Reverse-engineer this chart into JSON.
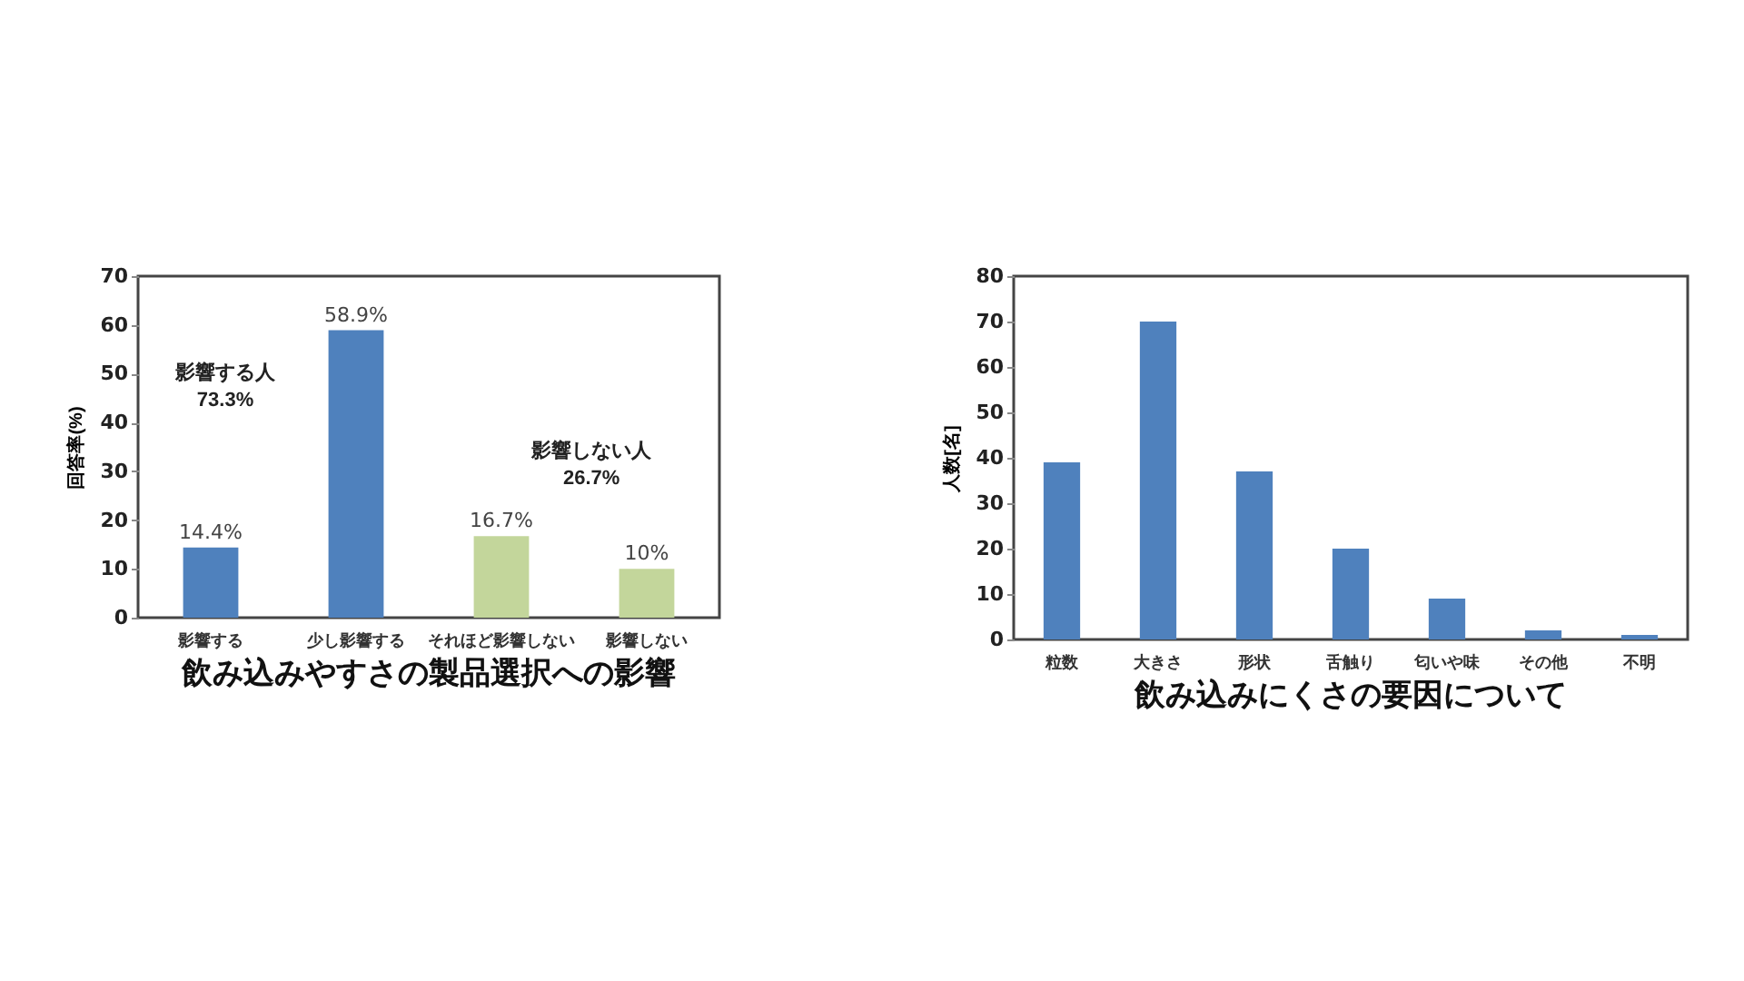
{
  "chart_data": [
    {
      "type": "bar",
      "title": "飲み込みやすさの製品選択への影響",
      "ylabel": "回答率(%)",
      "categories": [
        "影響する",
        "少し影響する",
        "それほど影響しない",
        "影響しない"
      ],
      "values": [
        14.4,
        58.9,
        16.7,
        10
      ],
      "colors": [
        "#4f81bd",
        "#4f81bd",
        "#c3d69b",
        "#c3d69b"
      ],
      "value_labels": [
        "14.4%",
        "58.9%",
        "16.7%",
        "10%"
      ],
      "annotations": [
        "影響する人\n73.3%",
        "影響しない人\n26.7%"
      ],
      "ylim": [
        0,
        70
      ],
      "yticks": [
        0,
        10,
        20,
        30,
        40,
        50,
        60,
        70
      ],
      "grid": false
    },
    {
      "type": "bar",
      "title": "飲み込みにくさの要因について",
      "ylabel": "人数[名]",
      "categories": [
        "粒数",
        "大きさ",
        "形状",
        "舌触り",
        "匂いや味",
        "その他",
        "不明"
      ],
      "values": [
        39,
        70,
        37,
        20,
        9,
        2,
        1
      ],
      "colors": [
        "#4f81bd",
        "#4f81bd",
        "#4f81bd",
        "#4f81bd",
        "#4f81bd",
        "#4f81bd",
        "#4f81bd"
      ],
      "ylim": [
        0,
        80
      ],
      "yticks": [
        0,
        10,
        20,
        30,
        40,
        50,
        60,
        70,
        80
      ],
      "grid": false
    }
  ]
}
